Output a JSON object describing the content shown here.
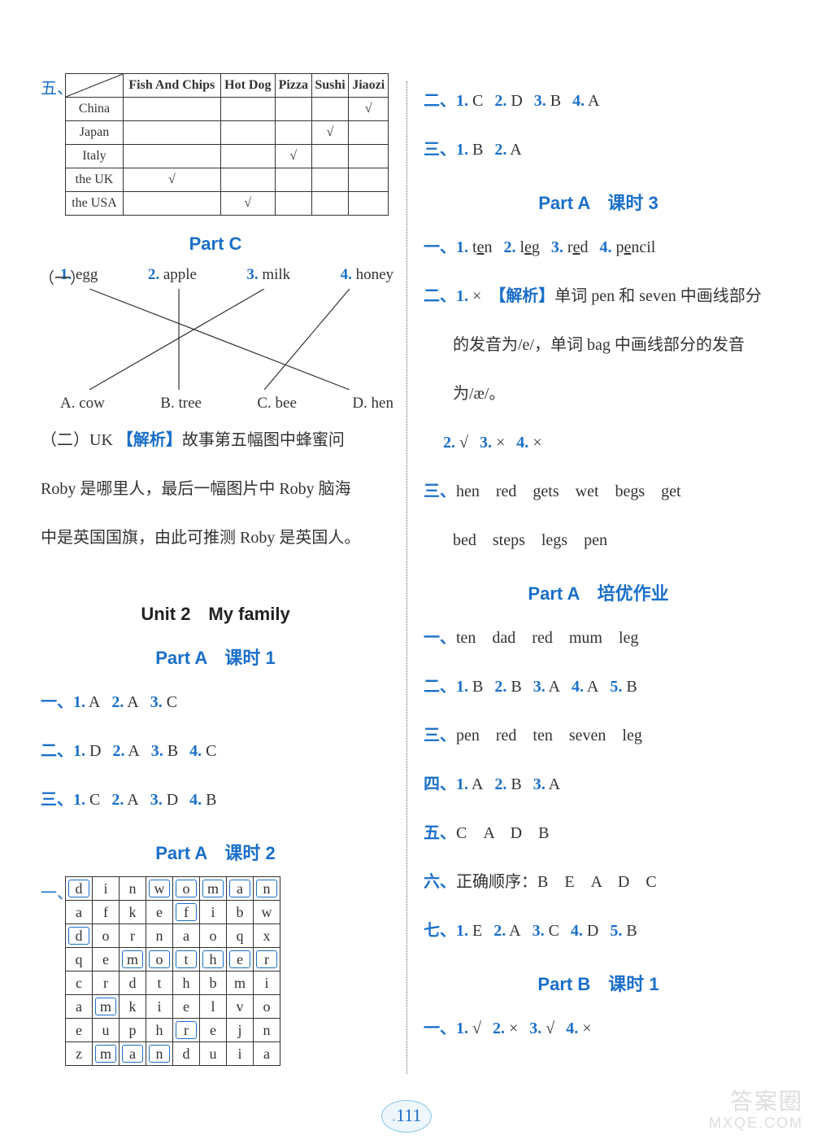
{
  "left": {
    "marker5": "五、",
    "foodTable": {
      "cols": [
        "Fish And Chips",
        "Hot Dog",
        "Pizza",
        "Sushi",
        "Jiaozi"
      ],
      "rows": [
        "China",
        "Japan",
        "Italy",
        "the UK",
        "the USA"
      ],
      "checks": {
        "China": "Jiaozi",
        "Japan": "Sushi",
        "Italy": "Pizza",
        "the UK": "Fish And Chips",
        "the USA": "Hot Dog"
      },
      "checkMark": "√"
    },
    "partC": {
      "title": "Part C"
    },
    "match": {
      "lead": "（一）",
      "top": [
        {
          "n": "1.",
          "t": "egg"
        },
        {
          "n": "2.",
          "t": "apple"
        },
        {
          "n": "3.",
          "t": "milk"
        },
        {
          "n": "4.",
          "t": "honey"
        }
      ],
      "bot": [
        "A. cow",
        "B. tree",
        "C. bee",
        "D. hen"
      ],
      "lines": [
        {
          "from": 0,
          "to": 3
        },
        {
          "from": 1,
          "to": 1
        },
        {
          "from": 2,
          "to": 0
        },
        {
          "from": 3,
          "to": 2
        }
      ]
    },
    "explain2": {
      "lead": "（二）UK",
      "analysisLabel": "【解析】",
      "text1": "故事第五幅图中蜂蜜问",
      "text2": "Roby 是哪里人，最后一幅图片中 Roby 脑海",
      "text3": "中是英国国旗，由此可推测 Roby 是英国人。"
    },
    "unit2": "Unit 2　My family",
    "partA1": {
      "title": "Part A　课时 1"
    },
    "a1": {
      "r1": [
        [
          "1.",
          "A"
        ],
        [
          "2.",
          "A"
        ],
        [
          "3.",
          "C"
        ]
      ],
      "r2": [
        [
          "1.",
          "D"
        ],
        [
          "2.",
          "A"
        ],
        [
          "3.",
          "B"
        ],
        [
          "4.",
          "C"
        ]
      ],
      "r3": [
        [
          "1.",
          "C"
        ],
        [
          "2.",
          "A"
        ],
        [
          "3.",
          "D"
        ],
        [
          "4.",
          "B"
        ]
      ]
    },
    "partA2": {
      "title": "Part A　课时 2"
    },
    "marker1b": "一、",
    "grid": {
      "rows": [
        [
          "d",
          "i",
          "n",
          "w",
          "o",
          "m",
          "a",
          "n"
        ],
        [
          "a",
          "f",
          "k",
          "e",
          "f",
          "i",
          "b",
          "w"
        ],
        [
          "d",
          "o",
          "r",
          "n",
          "a",
          "o",
          "q",
          "x"
        ],
        [
          "q",
          "e",
          "m",
          "o",
          "t",
          "h",
          "e",
          "r"
        ],
        [
          "c",
          "r",
          "d",
          "t",
          "h",
          "b",
          "m",
          "i"
        ],
        [
          "a",
          "m",
          "k",
          "i",
          "e",
          "l",
          "v",
          "o"
        ],
        [
          "e",
          "u",
          "p",
          "h",
          "r",
          "e",
          "j",
          "n"
        ],
        [
          "z",
          "m",
          "a",
          "n",
          "d",
          "u",
          "i",
          "a"
        ]
      ],
      "boxed": [
        [
          0,
          0
        ],
        [
          0,
          3
        ],
        [
          0,
          4
        ],
        [
          0,
          5
        ],
        [
          0,
          6
        ],
        [
          0,
          7
        ],
        [
          1,
          4
        ],
        [
          2,
          0
        ],
        [
          3,
          2
        ],
        [
          3,
          3
        ],
        [
          3,
          4
        ],
        [
          3,
          5
        ],
        [
          3,
          6
        ],
        [
          3,
          7
        ],
        [
          5,
          1
        ],
        [
          6,
          4
        ],
        [
          7,
          1
        ],
        [
          7,
          2
        ],
        [
          7,
          3
        ]
      ]
    }
  },
  "right": {
    "r2_1": [
      [
        "1.",
        "C"
      ],
      [
        "2.",
        "D"
      ],
      [
        "3.",
        "B"
      ],
      [
        "4.",
        "A"
      ]
    ],
    "r3_1": [
      [
        "1.",
        "B"
      ],
      [
        "2.",
        "A"
      ]
    ],
    "partA3": {
      "title": "Part A　课时 3"
    },
    "p3_1": [
      [
        "1.",
        "ten"
      ],
      [
        "2.",
        "leg"
      ],
      [
        "3.",
        "red"
      ],
      [
        "4.",
        "pencil"
      ]
    ],
    "p3_2_lead": "二、",
    "p3_2_1n": "1.",
    "p3_2_1v": "×",
    "p3_2_analysisLabel": "【解析】",
    "p3_2_line1": "单词 pen 和 seven 中画线部分",
    "p3_2_line2": "的发音为/e/，单词 bag 中画线部分的发音",
    "p3_2_line3": "为/æ/。",
    "p3_2_rest": [
      [
        "2.",
        "√"
      ],
      [
        "3.",
        "×"
      ],
      [
        "4.",
        "×"
      ]
    ],
    "p3_3_lead": "三、",
    "p3_3_line1": "hen　red　gets　wet　begs　get",
    "p3_3_line2": "bed　steps　legs　pen",
    "partAAdv": {
      "title": "Part A　培优作业"
    },
    "adv1_lead": "一、",
    "adv1_text": "ten　dad　red　mum　leg",
    "adv2": [
      [
        "1.",
        "B"
      ],
      [
        "2.",
        "B"
      ],
      [
        "3.",
        "A"
      ],
      [
        "4.",
        "A"
      ],
      [
        "5.",
        "B"
      ]
    ],
    "adv3_lead": "三、",
    "adv3_text": "pen　red　ten　seven　leg",
    "adv4": [
      [
        "1.",
        "A"
      ],
      [
        "2.",
        "B"
      ],
      [
        "3.",
        "A"
      ]
    ],
    "adv5_lead": "五、",
    "adv5_text": "C　A　D　B",
    "adv6_lead": "六、",
    "adv6_text": "正确顺序：B　E　A　D　C",
    "adv7": [
      [
        "1.",
        "E"
      ],
      [
        "2.",
        "A"
      ],
      [
        "3.",
        "C"
      ],
      [
        "4.",
        "D"
      ],
      [
        "5.",
        "B"
      ]
    ],
    "partB1": {
      "title": "Part B　课时 1"
    },
    "b1": [
      [
        "1.",
        "√"
      ],
      [
        "2.",
        "×"
      ],
      [
        "3.",
        "√"
      ],
      [
        "4.",
        "×"
      ]
    ]
  },
  "sectionLabels": {
    "one": "一、",
    "two": "二、",
    "three": "三、",
    "four": "四、",
    "five": "五、",
    "six": "六、",
    "seven": "七、"
  },
  "pageNum": "111",
  "watermark": {
    "l1": "答案圈",
    "l2": "MXQE.COM"
  }
}
